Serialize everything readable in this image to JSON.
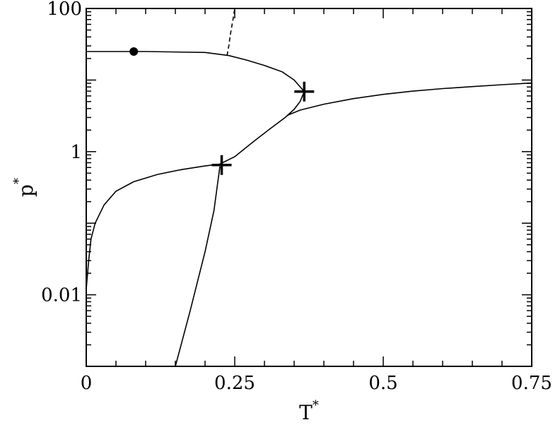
{
  "chart_data": {
    "type": "line",
    "title": "",
    "xlabel": "T",
    "xlabel_sup": "*",
    "ylabel": "p",
    "ylabel_sup": "*",
    "xlim": [
      0,
      0.75
    ],
    "ylim": [
      0.001,
      100
    ],
    "yscale": "log",
    "grid": false,
    "x_ticks": [
      0,
      0.25,
      0.5,
      0.75
    ],
    "x_tick_labels": [
      "0",
      "0.25",
      "0.5",
      "0.75"
    ],
    "y_ticks": [
      0.01,
      1,
      100
    ],
    "y_tick_labels": [
      "0.01",
      "1",
      "100"
    ],
    "series": [
      {
        "style": "solid",
        "points": [
          [
            0,
            0.012
          ],
          [
            0.004,
            0.03
          ],
          [
            0.008,
            0.06
          ],
          [
            0.015,
            0.1
          ],
          [
            0.03,
            0.18
          ],
          [
            0.05,
            0.28
          ],
          [
            0.08,
            0.38
          ],
          [
            0.12,
            0.48
          ],
          [
            0.16,
            0.56
          ],
          [
            0.2,
            0.63
          ],
          [
            0.225,
            0.67
          ],
          [
            0.25,
            0.85
          ],
          [
            0.28,
            1.35
          ],
          [
            0.31,
            2.1
          ],
          [
            0.335,
            3.0
          ],
          [
            0.35,
            3.9
          ],
          [
            0.36,
            5.0
          ],
          [
            0.367,
            6.9
          ]
        ]
      },
      {
        "style": "solid",
        "points": [
          [
            0,
            25
          ],
          [
            0.1,
            25
          ],
          [
            0.2,
            24.3
          ],
          [
            0.24,
            22
          ],
          [
            0.27,
            19
          ],
          [
            0.3,
            16
          ],
          [
            0.33,
            13
          ],
          [
            0.35,
            10
          ],
          [
            0.367,
            6.9
          ]
        ]
      },
      {
        "style": "solid",
        "points": [
          [
            0.15,
            0.001
          ],
          [
            0.175,
            0.006
          ],
          [
            0.2,
            0.04
          ],
          [
            0.215,
            0.15
          ],
          [
            0.225,
            0.62
          ]
        ]
      },
      {
        "style": "solid",
        "points": [
          [
            0.338,
            3.2
          ],
          [
            0.36,
            3.8
          ],
          [
            0.4,
            4.6
          ],
          [
            0.45,
            5.5
          ],
          [
            0.5,
            6.3
          ],
          [
            0.55,
            7.0
          ],
          [
            0.6,
            7.6
          ],
          [
            0.65,
            8.1
          ],
          [
            0.7,
            8.6
          ],
          [
            0.75,
            9.1
          ]
        ]
      },
      {
        "style": "dashed",
        "points": [
          [
            0.237,
            22
          ],
          [
            0.24,
            30
          ],
          [
            0.243,
            45
          ],
          [
            0.247,
            70
          ],
          [
            0.25,
            100
          ]
        ]
      }
    ],
    "markers": [
      {
        "type": "dot",
        "x": 0.08,
        "y": 25
      },
      {
        "type": "cross",
        "x": 0.367,
        "y": 6.9
      },
      {
        "type": "cross",
        "x": 0.228,
        "y": 0.65
      }
    ]
  }
}
